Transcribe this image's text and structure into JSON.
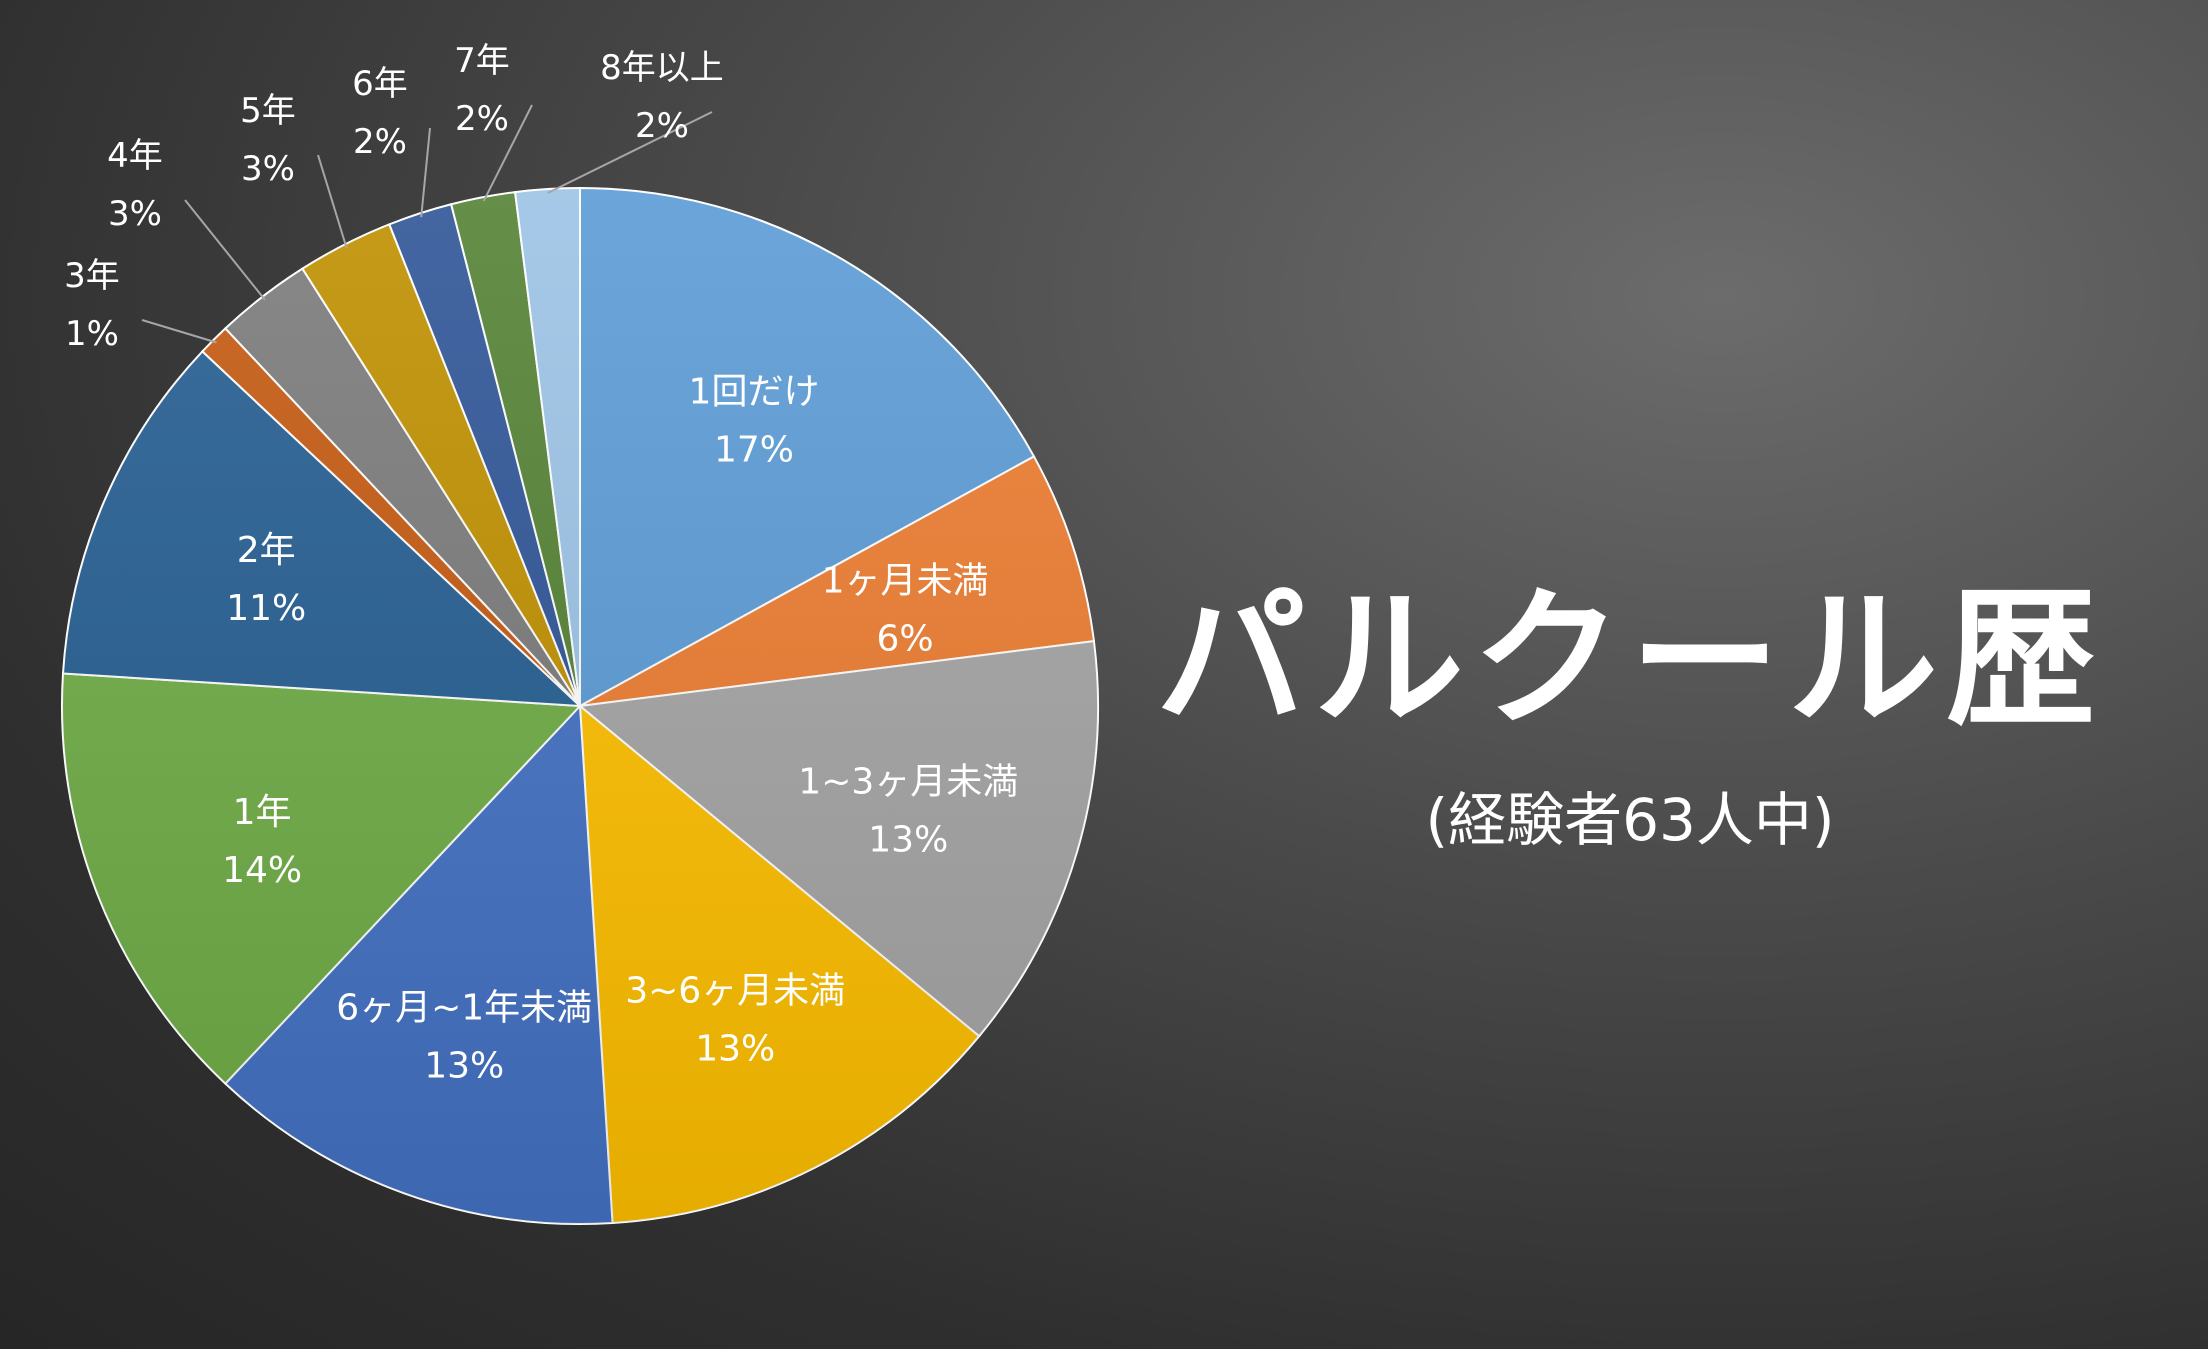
{
  "title": "パルクール歴",
  "subtitle": "(経験者63人中)",
  "chart_data": {
    "type": "pie",
    "start_angle_deg": 0,
    "direction": "clockwise",
    "slices": [
      {
        "label": "1回だけ",
        "value": 17,
        "value_label": "17%",
        "color": "#5b9bd5",
        "label_pos": "inside"
      },
      {
        "label": "1ヶ月未満",
        "value": 6,
        "value_label": "6%",
        "color": "#ed7d31",
        "label_pos": "inside"
      },
      {
        "label": "1~3ヶ月未満",
        "value": 13,
        "value_label": "13%",
        "color": "#a5a5a5",
        "label_pos": "inside"
      },
      {
        "label": "3~6ヶ月未満",
        "value": 13,
        "value_label": "13%",
        "color": "#ffc000",
        "label_pos": "inside"
      },
      {
        "label": "6ヶ月~1年未満",
        "value": 13,
        "value_label": "13%",
        "color": "#4472c4",
        "label_pos": "inside"
      },
      {
        "label": "1年",
        "value": 14,
        "value_label": "14%",
        "color": "#70ad47",
        "label_pos": "inside"
      },
      {
        "label": "2年",
        "value": 11,
        "value_label": "11%",
        "color": "#255e91",
        "label_pos": "inside"
      },
      {
        "label": "3年",
        "value": 1,
        "value_label": "1%",
        "color": "#c55a11",
        "label_pos": "outside"
      },
      {
        "label": "4年",
        "value": 3,
        "value_label": "3%",
        "color": "#7b7b7b",
        "label_pos": "outside"
      },
      {
        "label": "5年",
        "value": 3,
        "value_label": "3%",
        "color": "#bf9000",
        "label_pos": "outside"
      },
      {
        "label": "6年",
        "value": 2,
        "value_label": "2%",
        "color": "#2f5597",
        "label_pos": "outside"
      },
      {
        "label": "7年",
        "value": 2,
        "value_label": "2%",
        "color": "#548235",
        "label_pos": "outside"
      },
      {
        "label": "8年以上",
        "value": 2,
        "value_label": "2%",
        "color": "#9dc3e6",
        "label_pos": "outside"
      }
    ]
  }
}
